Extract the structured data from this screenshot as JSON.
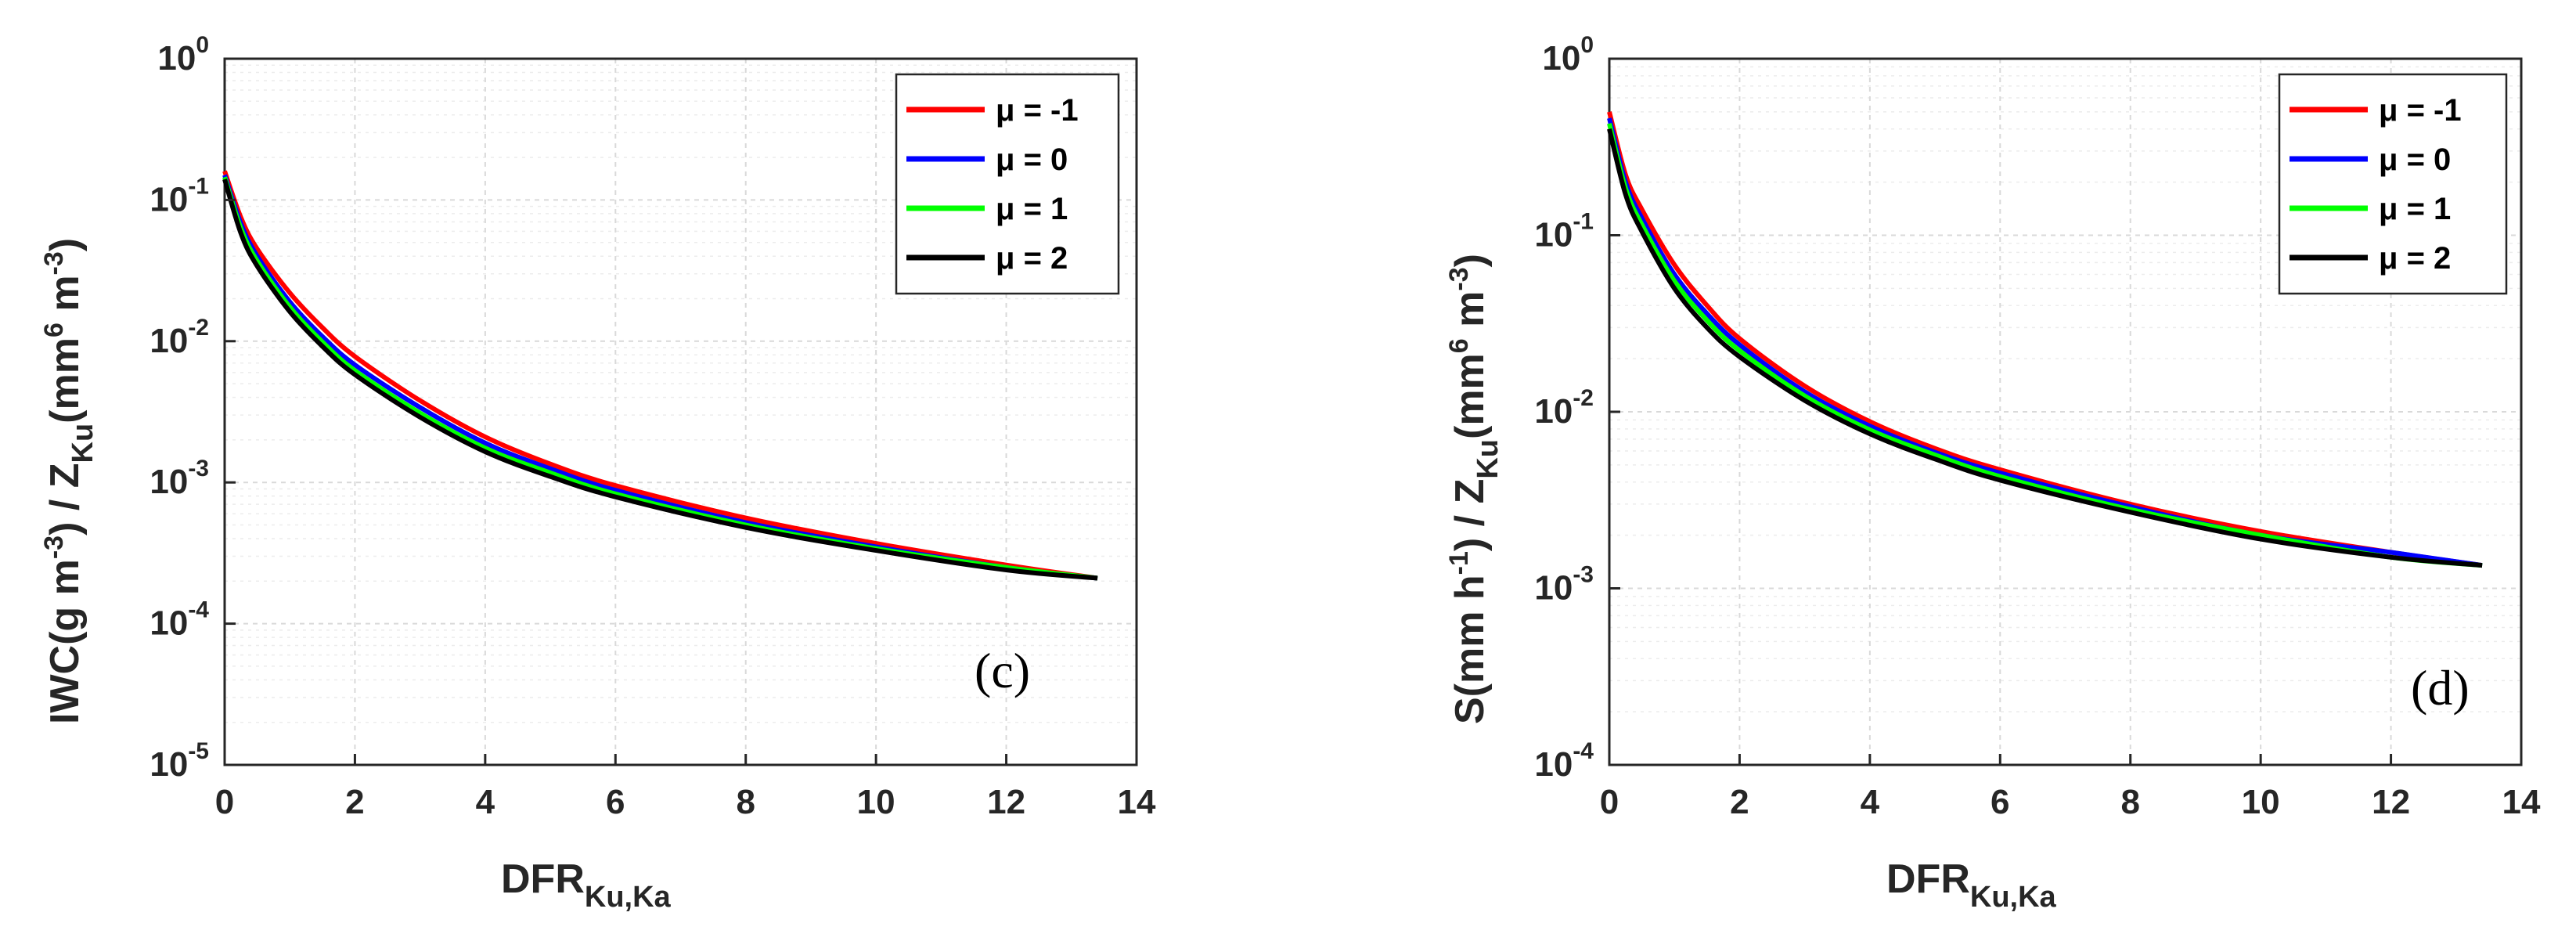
{
  "chart_data": [
    {
      "type": "line",
      "panel_tag": "(c)",
      "xlabel": {
        "main": "DFR",
        "sub": "Ku,Ka"
      },
      "ylabel": {
        "p1": "IWC(g m",
        "p1_sup": "-3",
        "p2": ") / Z",
        "p2_sub": "Ku",
        "p3": "(mm",
        "p3_sup": "6",
        "p4": " m",
        "p4_sup": "-3",
        "p5": ")"
      },
      "xlim": [
        0,
        14
      ],
      "ylim_log10": [
        -5,
        0
      ],
      "xticks": [
        "0",
        "2",
        "4",
        "6",
        "8",
        "10",
        "12",
        "14"
      ],
      "yticks": [
        {
          "base": "10",
          "exp": "-5"
        },
        {
          "base": "10",
          "exp": "-4"
        },
        {
          "base": "10",
          "exp": "-3"
        },
        {
          "base": "10",
          "exp": "-2"
        },
        {
          "base": "10",
          "exp": "-1"
        },
        {
          "base": "10",
          "exp": "0"
        }
      ],
      "grid": true,
      "legend_position": "top-right",
      "series": [
        {
          "name": "μ = -1",
          "color": "#ff0000",
          "x": [
            0,
            0.25,
            0.5,
            1,
            1.5,
            2,
            3,
            4,
            5,
            6,
            8,
            10,
            12,
            13.4
          ],
          "y": [
            0.16,
            0.075,
            0.045,
            0.022,
            0.0125,
            0.0078,
            0.0038,
            0.0021,
            0.00135,
            0.00095,
            0.00056,
            0.00037,
            0.00026,
            0.00021
          ]
        },
        {
          "name": "μ = 0",
          "color": "#0000ff",
          "x": [
            0,
            0.25,
            0.5,
            1,
            1.5,
            2,
            3,
            4,
            5,
            6,
            8,
            10,
            12,
            13.4
          ],
          "y": [
            0.15,
            0.068,
            0.04,
            0.019,
            0.0108,
            0.0068,
            0.0034,
            0.0019,
            0.00125,
            0.00088,
            0.00052,
            0.00035,
            0.00025,
            0.00021
          ]
        },
        {
          "name": "μ = 1",
          "color": "#00ff00",
          "x": [
            0,
            0.25,
            0.5,
            1,
            1.5,
            2,
            3,
            4,
            5,
            6,
            8,
            10,
            12,
            13.4
          ],
          "y": [
            0.145,
            0.063,
            0.037,
            0.0175,
            0.0099,
            0.0062,
            0.0031,
            0.00175,
            0.00117,
            0.00083,
            0.0005,
            0.00034,
            0.00025,
            0.00021
          ]
        },
        {
          "name": "μ = 2",
          "color": "#000000",
          "x": [
            0,
            0.25,
            0.5,
            1,
            1.5,
            2,
            3,
            4,
            5,
            6,
            8,
            10,
            12,
            13.4
          ],
          "y": [
            0.14,
            0.058,
            0.034,
            0.0162,
            0.0092,
            0.0058,
            0.0029,
            0.00165,
            0.0011,
            0.00079,
            0.00048,
            0.00033,
            0.00024,
            0.00021
          ]
        }
      ]
    },
    {
      "type": "line",
      "panel_tag": "(d)",
      "xlabel": {
        "main": "DFR",
        "sub": "Ku,Ka"
      },
      "ylabel": {
        "p1": "S(mm h",
        "p1_sup": "-1",
        "p2": ") / Z",
        "p2_sub": "Ku",
        "p3": "(mm",
        "p3_sup": "6",
        "p4": " m",
        "p4_sup": "-3",
        "p5": ")"
      },
      "xlim": [
        0,
        14
      ],
      "ylim_log10": [
        -4,
        0
      ],
      "xticks": [
        "0",
        "2",
        "4",
        "6",
        "8",
        "10",
        "12",
        "14"
      ],
      "yticks": [
        {
          "base": "10",
          "exp": "-4"
        },
        {
          "base": "10",
          "exp": "-3"
        },
        {
          "base": "10",
          "exp": "-2"
        },
        {
          "base": "10",
          "exp": "-1"
        },
        {
          "base": "10",
          "exp": "0"
        }
      ],
      "grid": true,
      "legend_position": "top-right",
      "series": [
        {
          "name": "μ = -1",
          "color": "#ff0000",
          "x": [
            0,
            0.25,
            0.5,
            1,
            1.5,
            2,
            3,
            4,
            5,
            6,
            8,
            10,
            12,
            13.4
          ],
          "y": [
            0.5,
            0.22,
            0.14,
            0.068,
            0.04,
            0.026,
            0.014,
            0.0088,
            0.0062,
            0.0047,
            0.003,
            0.0021,
            0.0016,
            0.00135
          ]
        },
        {
          "name": "μ = 0",
          "color": "#0000ff",
          "x": [
            0,
            0.25,
            0.5,
            1,
            1.5,
            2,
            3,
            4,
            5,
            6,
            8,
            10,
            12,
            13.4
          ],
          "y": [
            0.46,
            0.2,
            0.125,
            0.06,
            0.036,
            0.024,
            0.013,
            0.0083,
            0.0059,
            0.0045,
            0.0029,
            0.002,
            0.0016,
            0.00135
          ]
        },
        {
          "name": "μ = 1",
          "color": "#00ff00",
          "x": [
            0,
            0.25,
            0.5,
            1,
            1.5,
            2,
            3,
            4,
            5,
            6,
            8,
            10,
            12,
            13.4
          ],
          "y": [
            0.43,
            0.185,
            0.115,
            0.055,
            0.033,
            0.0222,
            0.0123,
            0.0079,
            0.0057,
            0.0043,
            0.0028,
            0.002,
            0.0015,
            0.00135
          ]
        },
        {
          "name": "μ = 2",
          "color": "#000000",
          "x": [
            0,
            0.25,
            0.5,
            1,
            1.5,
            2,
            3,
            4,
            5,
            6,
            8,
            10,
            12,
            13.4
          ],
          "y": [
            0.4,
            0.17,
            0.105,
            0.05,
            0.03,
            0.0205,
            0.0116,
            0.0075,
            0.0054,
            0.0041,
            0.0027,
            0.0019,
            0.0015,
            0.00135
          ]
        }
      ]
    }
  ]
}
